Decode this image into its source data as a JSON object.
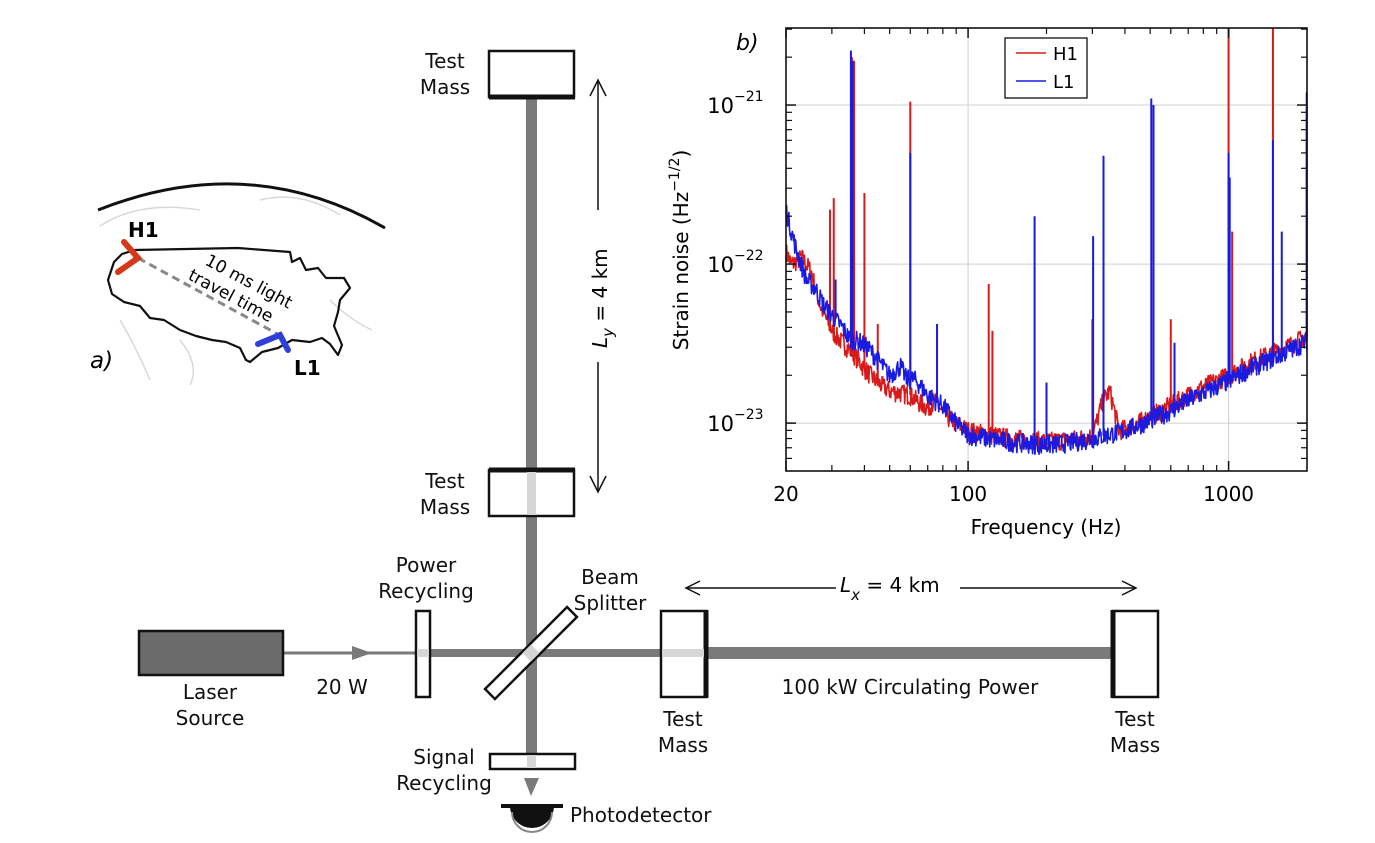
{
  "panel_a": {
    "tag": "a)",
    "sites": [
      {
        "name": "H1",
        "color": "#d43a1a"
      },
      {
        "name": "L1",
        "color": "#2f3fd8"
      }
    ],
    "travel_label_line1": "10 ms light",
    "travel_label_line2": "travel time"
  },
  "interferometer": {
    "test_mass_label_line1": "Test",
    "test_mass_label_line2": "Mass",
    "ly_label_var": "L",
    "ly_label_sub": "y",
    "ly_label_rest": " = 4 km",
    "lx_label_var": "L",
    "lx_label_sub": "x",
    "lx_label_rest": " = 4 km",
    "power_recycling_line1": "Power",
    "power_recycling_line2": "Recycling",
    "beam_splitter_line1": "Beam",
    "beam_splitter_line2": "Splitter",
    "laser_line1": "Laser",
    "laser_line2": "Source",
    "laser_power": "20 W",
    "circulating_power": "100 kW Circulating Power",
    "signal_recycling_line1": "Signal",
    "signal_recycling_line2": "Recycling",
    "photodetector": "Photodetector",
    "beam_color": "#7a7a7a",
    "laser_color": "#6b6b6b"
  },
  "chart_data": {
    "type": "line",
    "panel_tag": "b)",
    "title": "",
    "xlabel": "Frequency (Hz)",
    "ylabel": "Strain noise (Hz",
    "ylabel_sup": "−1/2",
    "ylabel_close": ")",
    "xscale": "log",
    "yscale": "log",
    "xlim": [
      20,
      2000
    ],
    "ylim": [
      5e-24,
      3.05e-21
    ],
    "grid": true,
    "legend_position": "top-center",
    "x_ticks": [
      {
        "value": 20,
        "label": "20"
      },
      {
        "value": 100,
        "label": "100"
      },
      {
        "value": 1000,
        "label": "1000"
      }
    ],
    "y_ticks": [
      {
        "value": 1e-21,
        "base": "10",
        "exp": "−21"
      },
      {
        "value": 1e-22,
        "base": "10",
        "exp": "−22"
      },
      {
        "value": 1e-23,
        "base": "10",
        "exp": "−23"
      }
    ],
    "series": [
      {
        "name": "H1",
        "color": "#d81a1a",
        "baseline": [
          [
            20,
            1.2e-22
          ],
          [
            21,
            1e-22
          ],
          [
            23,
            1.1e-22
          ],
          [
            25,
            9e-23
          ],
          [
            27,
            5.5e-23
          ],
          [
            30,
            3.8e-23
          ],
          [
            33,
            3.2e-23
          ],
          [
            36,
            2.8e-23
          ],
          [
            40,
            2.2e-23
          ],
          [
            45,
            1.8e-23
          ],
          [
            50,
            1.6e-23
          ],
          [
            55,
            1.55e-23
          ],
          [
            60,
            1.5e-23
          ],
          [
            65,
            1.35e-23
          ],
          [
            70,
            1.25e-23
          ],
          [
            75,
            1.4e-23
          ],
          [
            80,
            1.15e-23
          ],
          [
            90,
            1e-23
          ],
          [
            100,
            9e-24
          ],
          [
            120,
            8.5e-24
          ],
          [
            150,
            8e-24
          ],
          [
            180,
            7.8e-24
          ],
          [
            200,
            7.7e-24
          ],
          [
            250,
            7.9e-24
          ],
          [
            300,
            8.3e-24
          ],
          [
            330,
            1.4e-23
          ],
          [
            350,
            1.6e-23
          ],
          [
            380,
            9e-24
          ],
          [
            420,
            9.5e-24
          ],
          [
            500,
            1.1e-23
          ],
          [
            600,
            1.3e-23
          ],
          [
            700,
            1.5e-23
          ],
          [
            800,
            1.7e-23
          ],
          [
            1000,
            2e-23
          ],
          [
            1200,
            2.4e-23
          ],
          [
            1500,
            2.8e-23
          ],
          [
            1800,
            3.2e-23
          ],
          [
            2000,
            3.6e-23
          ]
        ],
        "spikes": [
          [
            29.5,
            2.2e-22
          ],
          [
            30.5,
            2.6e-22
          ],
          [
            35.8,
            2e-21
          ],
          [
            36.5,
            1.9e-21
          ],
          [
            40,
            2.8e-22
          ],
          [
            45,
            4.2e-23
          ],
          [
            60,
            1.05e-21
          ],
          [
            120,
            7.5e-23
          ],
          [
            124,
            3.8e-23
          ],
          [
            300,
            4.5e-23
          ],
          [
            331,
            4.2e-23
          ],
          [
            600,
            4.5e-23
          ],
          [
            1000,
            3.05e-21
          ],
          [
            1032,
            1.6e-22
          ],
          [
            1480,
            3.05e-21
          ],
          [
            1995,
            9.5e-22
          ]
        ]
      },
      {
        "name": "L1",
        "color": "#1a1ae0",
        "baseline": [
          [
            20,
            2.2e-22
          ],
          [
            21,
            1.6e-22
          ],
          [
            22,
            1.2e-22
          ],
          [
            24,
            8e-23
          ],
          [
            26,
            7e-23
          ],
          [
            28,
            5.5e-23
          ],
          [
            30,
            4.8e-23
          ],
          [
            33,
            4e-23
          ],
          [
            35,
            3.4e-23
          ],
          [
            38,
            3.3e-23
          ],
          [
            42,
            2.9e-23
          ],
          [
            46,
            2.4e-23
          ],
          [
            50,
            2e-23
          ],
          [
            55,
            2.3e-23
          ],
          [
            58,
            1.9e-23
          ],
          [
            62,
            1.9e-23
          ],
          [
            66,
            1.7e-23
          ],
          [
            70,
            1.5e-23
          ],
          [
            80,
            1.3e-23
          ],
          [
            90,
            1e-23
          ],
          [
            100,
            8.5e-24
          ],
          [
            120,
            8e-24
          ],
          [
            150,
            7.6e-24
          ],
          [
            180,
            7.4e-24
          ],
          [
            200,
            7.3e-24
          ],
          [
            250,
            7.6e-24
          ],
          [
            300,
            8e-24
          ],
          [
            400,
            9e-24
          ],
          [
            500,
            1.05e-23
          ],
          [
            600,
            1.2e-23
          ],
          [
            700,
            1.4e-23
          ],
          [
            800,
            1.55e-23
          ],
          [
            1000,
            1.85e-23
          ],
          [
            1200,
            2.2e-23
          ],
          [
            1500,
            2.6e-23
          ],
          [
            1800,
            3e-23
          ],
          [
            2000,
            3.3e-23
          ]
        ],
        "spikes": [
          [
            31,
            8e-23
          ],
          [
            35.5,
            2.2e-21
          ],
          [
            36,
            1.9e-21
          ],
          [
            60,
            5e-22
          ],
          [
            76,
            4.2e-23
          ],
          [
            180,
            2e-22
          ],
          [
            200,
            1.8e-23
          ],
          [
            302,
            1.5e-22
          ],
          [
            331,
            4.8e-22
          ],
          [
            505,
            1.1e-21
          ],
          [
            515,
            1e-21
          ],
          [
            620,
            3.2e-23
          ],
          [
            1000,
            5e-22
          ],
          [
            1010,
            3.5e-22
          ],
          [
            1480,
            6e-22
          ],
          [
            1600,
            1.6e-22
          ],
          [
            1995,
            1.2e-21
          ]
        ]
      }
    ]
  }
}
